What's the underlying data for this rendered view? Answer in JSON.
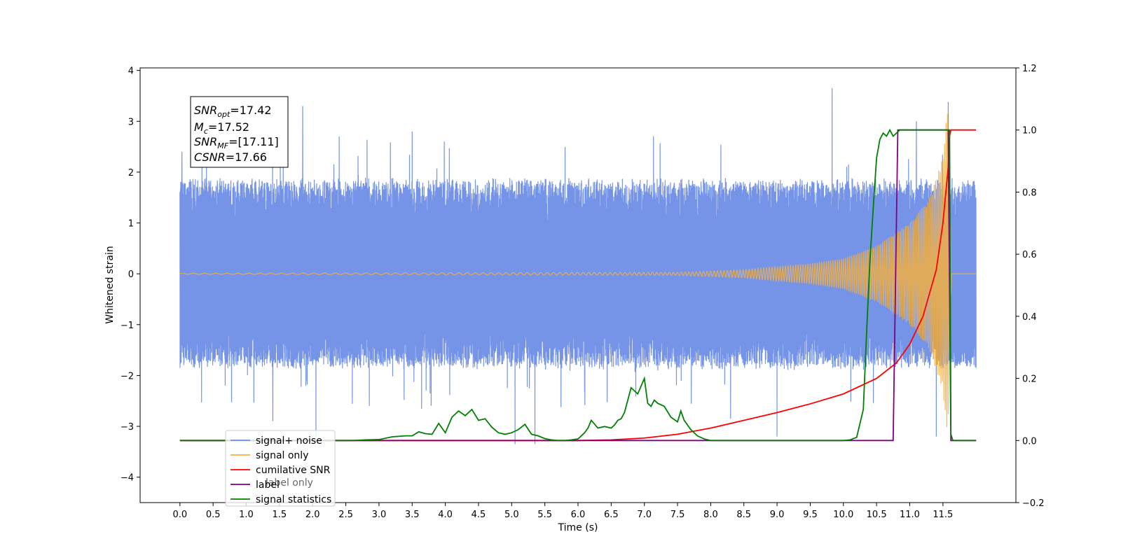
{
  "chart_data": {
    "type": "line",
    "xlabel": "Time (s)",
    "ylabel": "Whitened strain",
    "xlim": [
      -0.6,
      12.6
    ],
    "ylim": [
      -4.5,
      4.05
    ],
    "y2lim": [
      -0.2,
      1.2
    ],
    "xticks": [
      "0.0",
      "0.5",
      "1.0",
      "1.5",
      "2.0",
      "2.5",
      "3.0",
      "3.5",
      "4.0",
      "4.5",
      "5.0",
      "5.5",
      "6.0",
      "6.5",
      "7.0",
      "7.5",
      "8.0",
      "8.5",
      "9.0",
      "9.5",
      "10.0",
      "10.5",
      "11.0",
      "11.5"
    ],
    "yticks": [
      "4",
      "3",
      "2",
      "1",
      "0",
      "−1",
      "−2",
      "−3",
      "−4"
    ],
    "y2ticks": [
      "1.2",
      "1.0",
      "0.8",
      "0.6",
      "0.4",
      "0.2",
      "0.0",
      "−0.2"
    ],
    "annotation": {
      "snr_opt_sym": "SNR",
      "snr_opt_sub": "opt",
      "snr_opt_val": "=17.42",
      "mc_sym": "M",
      "mc_sub": "c",
      "mc_val": "=17.52",
      "snr_mf_sym": "SNR",
      "snr_mf_sub": "MF",
      "snr_mf_val": "=[17.11]",
      "csnr_sym": "CSNR",
      "csnr_val": "=17.66"
    },
    "legend": {
      "placement": "lower-left",
      "entries": [
        {
          "label": "signal+ noise",
          "color": "#6f8ee6"
        },
        {
          "label": "signal only",
          "color": "#f5b041"
        },
        {
          "label": "cumilative SNR",
          "color": "#ff0000"
        },
        {
          "label": "label",
          "color": "#800080"
        },
        {
          "label": "signal statistics",
          "color": "#008000"
        }
      ]
    },
    "occluded_text": "label only",
    "series": [
      {
        "name": "signal+ noise",
        "axis": "left",
        "color": "#6f8ee6",
        "x_start": 0.0,
        "x_end": 12.0,
        "amplitude_envelope": [
          1.75,
          1.9
        ],
        "peaks": [
          [
            0.03,
            2.4
          ],
          [
            0.4,
            2.2
          ],
          [
            1.85,
            3.3
          ],
          [
            2.4,
            2.7
          ],
          [
            3.5,
            2.8
          ],
          [
            9.83,
            3.65
          ],
          [
            11.1,
            3.0
          ],
          [
            11.58,
            3.38
          ],
          [
            2.05,
            -3.2
          ],
          [
            5.05,
            -3.35
          ],
          [
            5.35,
            -3.35
          ],
          [
            9.0,
            -3.2
          ],
          [
            11.4,
            -3.2
          ],
          [
            1.4,
            -2.9
          ],
          [
            8.3,
            -2.85
          ]
        ]
      },
      {
        "name": "signal only",
        "axis": "left",
        "color": "#f5b041",
        "x_start": 0.0,
        "x_end": 12.0,
        "amplitude_points": [
          [
            0,
            0.01
          ],
          [
            7.5,
            0.03
          ],
          [
            8.5,
            0.08
          ],
          [
            9.5,
            0.2
          ],
          [
            10.0,
            0.3
          ],
          [
            10.5,
            0.55
          ],
          [
            11.0,
            1.0
          ],
          [
            11.3,
            1.5
          ],
          [
            11.5,
            2.3
          ],
          [
            11.57,
            3.3
          ],
          [
            11.63,
            0.0
          ],
          [
            12.0,
            0.0
          ]
        ]
      },
      {
        "name": "cumilative SNR",
        "axis": "right",
        "color": "#ff0000",
        "x": [
          0.0,
          6.0,
          6.5,
          7.0,
          7.5,
          8.0,
          8.5,
          9.0,
          9.5,
          10.0,
          10.5,
          10.8,
          11.0,
          11.2,
          11.4,
          11.5,
          11.58,
          11.6,
          11.62,
          12.0
        ],
        "y": [
          0.0,
          0.0,
          0.002,
          0.008,
          0.02,
          0.04,
          0.065,
          0.09,
          0.118,
          0.15,
          0.2,
          0.25,
          0.31,
          0.4,
          0.55,
          0.7,
          0.88,
          0.98,
          1.0,
          1.0
        ]
      },
      {
        "name": "label",
        "axis": "right",
        "color": "#800080",
        "x": [
          0.0,
          10.75,
          10.82,
          11.58,
          11.62,
          12.0
        ],
        "y": [
          0.0,
          0.0,
          1.0,
          1.0,
          0.0,
          0.0
        ]
      },
      {
        "name": "signal statistics",
        "axis": "right",
        "color": "#008000",
        "x": [
          0.0,
          2.6,
          2.8,
          3.0,
          3.2,
          3.4,
          3.5,
          3.6,
          3.7,
          3.8,
          3.9,
          4.0,
          4.1,
          4.2,
          4.3,
          4.4,
          4.5,
          4.6,
          4.7,
          4.8,
          4.9,
          5.0,
          5.1,
          5.2,
          5.3,
          5.4,
          5.5,
          5.6,
          5.7,
          5.8,
          5.9,
          6.0,
          6.1,
          6.15,
          6.2,
          6.3,
          6.4,
          6.5,
          6.55,
          6.6,
          6.65,
          6.7,
          6.8,
          6.9,
          7.0,
          7.05,
          7.1,
          7.15,
          7.2,
          7.3,
          7.4,
          7.5,
          7.55,
          7.6,
          7.7,
          7.8,
          7.9,
          8.0,
          8.2,
          8.5,
          10.0,
          10.1,
          10.2,
          10.3,
          10.35,
          10.4,
          10.45,
          10.5,
          10.55,
          10.6,
          10.65,
          10.7,
          10.75,
          10.8,
          10.85,
          10.9,
          10.95,
          11.0,
          11.5,
          11.57,
          11.6,
          11.62,
          11.65,
          12.0
        ],
        "y": [
          0.0,
          0.0,
          0.002,
          0.003,
          0.012,
          0.015,
          0.015,
          0.028,
          0.022,
          0.02,
          0.055,
          0.025,
          0.075,
          0.095,
          0.08,
          0.1,
          0.065,
          0.07,
          0.043,
          0.025,
          0.02,
          0.025,
          0.035,
          0.052,
          0.02,
          0.015,
          0.006,
          0.002,
          0.0,
          0.0,
          0.002,
          0.005,
          0.025,
          0.04,
          0.065,
          0.04,
          0.045,
          0.04,
          0.05,
          0.065,
          0.07,
          0.09,
          0.17,
          0.15,
          0.2,
          0.12,
          0.11,
          0.13,
          0.12,
          0.11,
          0.075,
          0.06,
          0.095,
          0.065,
          0.035,
          0.015,
          0.005,
          0.0,
          0.0,
          0.0,
          0.0,
          0.002,
          0.01,
          0.1,
          0.35,
          0.58,
          0.75,
          0.91,
          0.97,
          0.99,
          0.98,
          1.0,
          0.98,
          0.99,
          1.0,
          1.0,
          1.0,
          1.0,
          1.0,
          1.0,
          1.0,
          0.02,
          0.0,
          0.0
        ]
      }
    ]
  }
}
